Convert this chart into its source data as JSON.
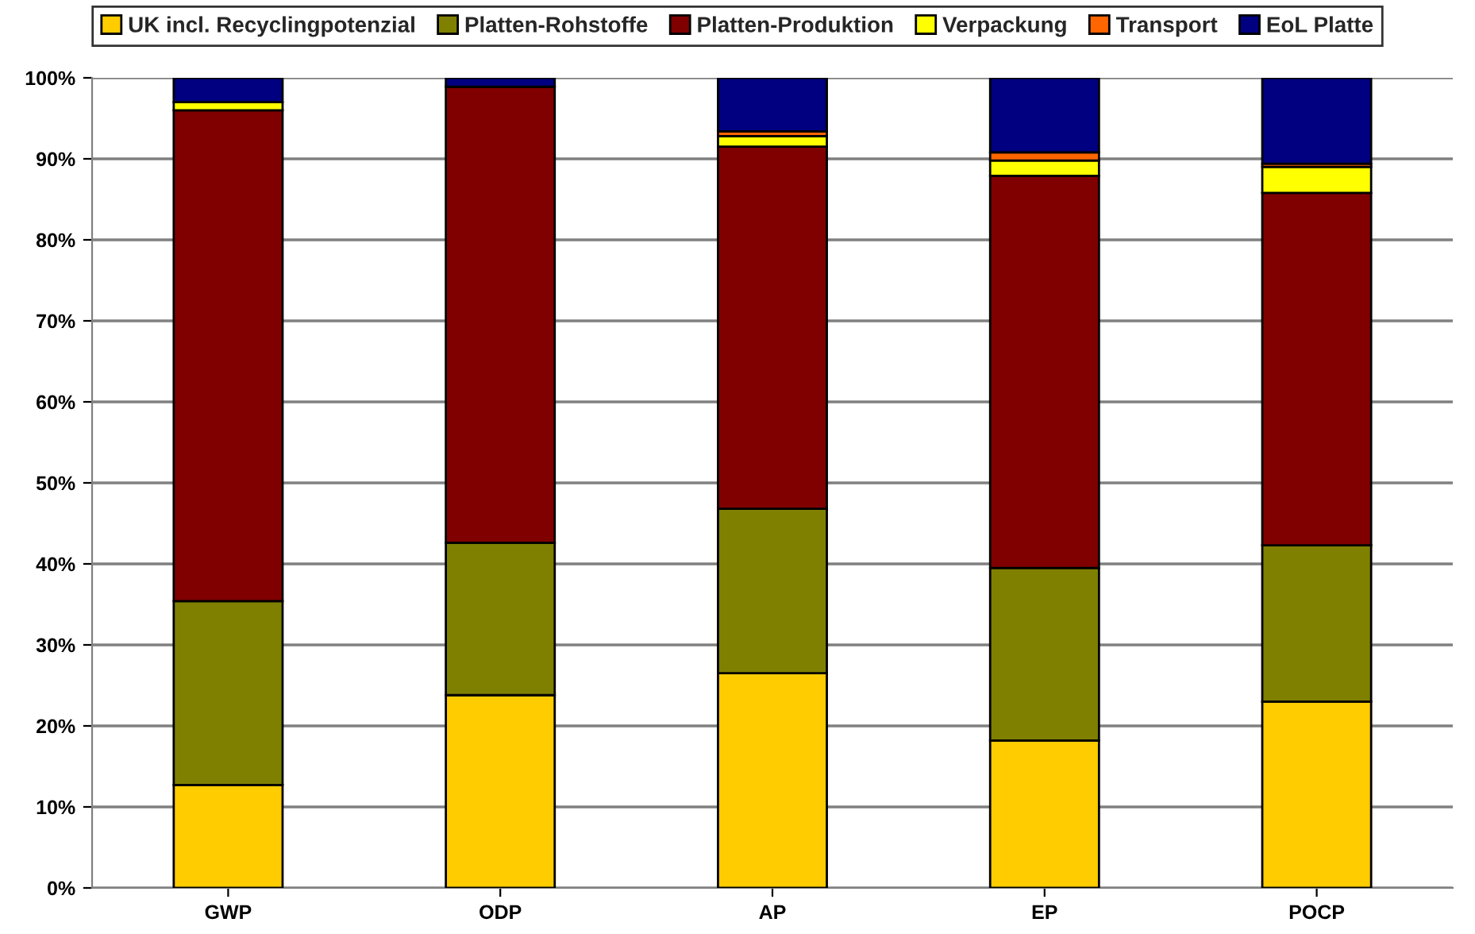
{
  "chart_data": {
    "type": "bar",
    "stacked": true,
    "categories": [
      "GWP",
      "ODP",
      "AP",
      "EP",
      "POCP"
    ],
    "series": [
      {
        "name": "UK incl. Recyclingpotenzial",
        "color": "#ffcc00",
        "values": [
          12.7,
          23.8,
          26.5,
          18.2,
          23.0
        ]
      },
      {
        "name": "Platten-Rohstoffe",
        "color": "#808000",
        "values": [
          22.7,
          18.8,
          20.3,
          21.3,
          19.3
        ]
      },
      {
        "name": "Platten-Produktion",
        "color": "#800000",
        "values": [
          60.6,
          56.3,
          44.7,
          48.4,
          43.5
        ]
      },
      {
        "name": "Verpackung",
        "color": "#ffff00",
        "values": [
          1.0,
          null,
          1.3,
          1.9,
          3.2
        ]
      },
      {
        "name": "Transport",
        "color": "#ff6600",
        "values": [
          null,
          null,
          0.6,
          1.0,
          0.4
        ]
      },
      {
        "name": "EoL Platte",
        "color": "#000080",
        "values": [
          3.0,
          1.1,
          6.6,
          9.2,
          10.6
        ]
      }
    ],
    "ylim": [
      0,
      100
    ],
    "yticks": [
      {
        "value": 0,
        "label": "0%"
      },
      {
        "value": 10,
        "label": "10%"
      },
      {
        "value": 20,
        "label": "20%"
      },
      {
        "value": 30,
        "label": "30%"
      },
      {
        "value": 40,
        "label": "40%"
      },
      {
        "value": 50,
        "label": "50%"
      },
      {
        "value": 60,
        "label": "60%"
      },
      {
        "value": 70,
        "label": "70%"
      },
      {
        "value": 80,
        "label": "80%"
      },
      {
        "value": 90,
        "label": "90%"
      },
      {
        "value": 100,
        "label": "100%"
      }
    ],
    "grid": "y",
    "legend": "top"
  }
}
